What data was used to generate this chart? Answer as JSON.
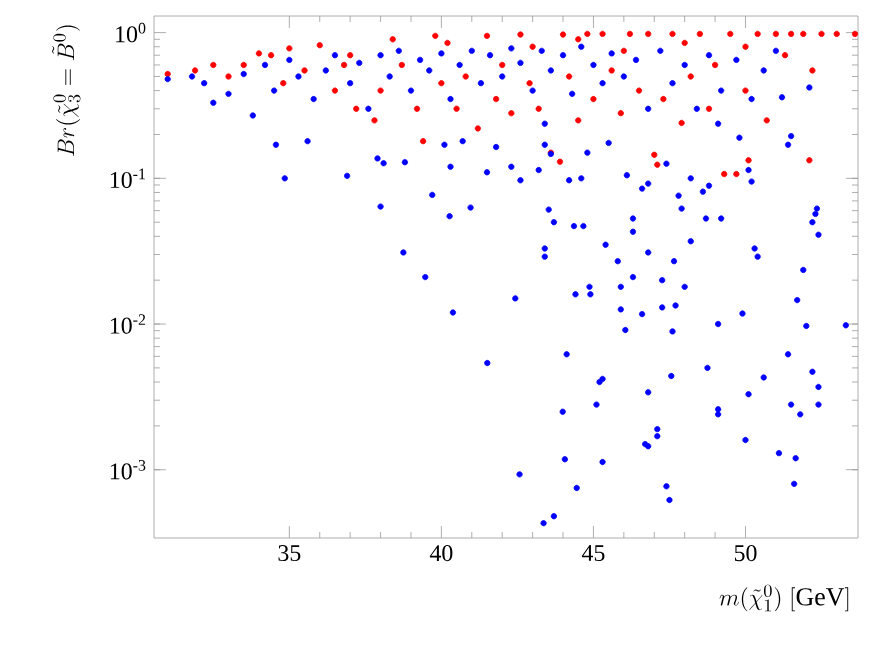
{
  "chart_data": {
    "type": "scatter",
    "xlabel": "m(\\tilde{\\chi}^0_1)\\ [\\mathrm{GeV}]",
    "ylabel": "Br(\\tilde{\\chi}^0_3=\\tilde{B}^0)",
    "xlim": [
      30.55,
      53.7
    ],
    "ylim": [
      0.00034,
      1.3
    ],
    "xticks": [
      35,
      40,
      45,
      50
    ],
    "yticks": [
      {
        "value": 0.001,
        "label": "10$^{-3}$"
      },
      {
        "value": 0.01,
        "label": "10$^{-2}$"
      },
      {
        "value": 0.1,
        "label": "10$^{-1}$"
      },
      {
        "value": 1,
        "label": "10$^{0}$"
      }
    ],
    "log": "y",
    "marker": "circle",
    "grid": false,
    "series": [
      {
        "color": "#ff0000",
        "x": [
          31.0,
          31.9,
          32.5,
          33.0,
          33.5,
          34.0,
          34.4,
          35.0,
          35.5,
          36.0,
          36.5,
          37.0,
          37.2,
          37.8,
          38.0,
          38.4,
          38.7,
          39.2,
          39.4,
          39.8,
          40.2,
          40.5,
          40.8,
          41.2,
          41.5,
          41.8,
          42.0,
          42.3,
          42.6,
          42.9,
          43.2,
          43.6,
          43.9,
          44.0,
          44.2,
          44.5,
          44.8,
          45.0,
          45.3,
          45.6,
          45.9,
          46.2,
          46.5,
          46.8,
          47.0,
          47.1,
          47.3,
          47.6,
          47.9,
          48.2,
          48.5,
          48.8,
          49.0,
          49.3,
          49.5,
          49.7,
          50.0,
          50.1,
          50.4,
          50.7,
          51.0,
          51.3,
          51.5,
          51.9,
          52.1,
          52.2,
          52.5,
          53.0,
          53.6,
          43.0,
          44.5,
          46.0,
          48.0,
          50.0,
          40.0,
          36.8,
          34.8
        ],
        "values": [
          0.52,
          0.55,
          0.6,
          0.5,
          0.6,
          0.72,
          0.7,
          0.78,
          0.55,
          0.82,
          0.4,
          0.7,
          0.3,
          0.25,
          0.4,
          0.9,
          0.6,
          0.3,
          0.18,
          0.95,
          0.85,
          0.3,
          0.5,
          0.22,
          0.95,
          0.35,
          0.6,
          0.28,
          0.97,
          0.45,
          0.3,
          0.15,
          0.13,
          0.97,
          0.5,
          0.25,
          0.98,
          0.35,
          0.98,
          0.55,
          0.28,
          0.98,
          0.4,
          0.98,
          0.145,
          0.124,
          0.35,
          0.98,
          0.24,
          0.5,
          0.98,
          0.3,
          0.6,
          0.107,
          0.98,
          0.107,
          0.4,
          0.133,
          0.98,
          0.25,
          0.98,
          0.7,
          0.98,
          0.98,
          0.133,
          0.55,
          0.98,
          0.98,
          0.98,
          0.8,
          0.9,
          0.75,
          0.85,
          0.8,
          0.45,
          0.6,
          0.45
        ]
      },
      {
        "color": "#0000ff",
        "x": [
          31.0,
          31.8,
          32.2,
          32.5,
          33.0,
          33.5,
          33.8,
          34.2,
          34.5,
          35.0,
          35.3,
          35.8,
          36.2,
          36.5,
          37.0,
          37.3,
          37.6,
          38.0,
          38.3,
          38.6,
          39.0,
          39.3,
          39.6,
          40.0,
          40.3,
          40.6,
          41.0,
          41.3,
          41.6,
          42.0,
          42.3,
          42.6,
          43.0,
          43.3,
          43.6,
          44.0,
          44.3,
          44.6,
          45.0,
          45.3,
          45.6,
          46.0,
          46.4,
          46.8,
          47.2,
          47.6,
          48.0,
          48.4,
          48.8,
          49.2,
          49.7,
          50.2,
          50.6,
          51.0,
          52.1,
          34.56,
          34.85,
          35.6,
          36.9,
          38.0,
          37.9,
          38.1,
          38.8,
          39.7,
          40.1,
          40.3,
          40.7,
          41.5,
          41.8,
          42.3,
          42.6,
          43.2,
          43.4,
          43.4,
          43.6,
          44.2,
          44.6,
          44.8,
          45.5,
          46.1,
          46.6,
          46.8,
          47.4,
          47.8,
          48.2,
          48.6,
          48.8,
          49.1,
          49.8,
          50.1,
          50.2,
          51.2,
          51.4,
          51.5,
          38.75,
          39.47,
          40.27,
          40.38,
          40.96,
          41.51,
          42.43,
          43.4,
          43.4,
          43.53,
          43.7,
          44.12,
          43.99,
          44.36,
          44.67,
          44.41,
          44.87,
          44.9,
          45.2,
          45.3,
          45.4,
          45.1,
          45.8,
          45.9,
          45.9,
          46.05,
          46.3,
          46.3,
          46.3,
          46.6,
          46.8,
          46.8,
          46.7,
          47.1,
          47.1,
          47.26,
          47.26,
          47.56,
          47.6,
          47.65,
          47.7,
          47.9,
          48.0,
          48.2,
          48.7,
          49.2,
          48.75,
          49.1,
          49.1,
          49.1,
          49.9,
          50.0,
          50.1,
          50.3,
          50.4,
          50.6,
          51.1,
          51.4,
          51.5,
          51.7,
          51.65,
          51.8,
          51.9,
          52.0,
          52.2,
          52.4,
          52.4,
          52.2,
          52.3,
          52.35,
          52.4,
          53.3,
          42.57,
          43.36,
          43.7,
          44.06,
          44.45,
          45.3,
          46.8,
          47.4,
          47.5,
          51.6
        ],
        "values": [
          0.48,
          0.5,
          0.45,
          0.33,
          0.38,
          0.52,
          0.27,
          0.6,
          0.4,
          0.65,
          0.5,
          0.35,
          0.55,
          0.7,
          0.45,
          0.62,
          0.3,
          0.7,
          0.5,
          0.75,
          0.4,
          0.65,
          0.55,
          0.72,
          0.35,
          0.6,
          0.75,
          0.45,
          0.7,
          0.5,
          0.78,
          0.62,
          0.4,
          0.75,
          0.55,
          0.7,
          0.38,
          0.8,
          0.6,
          0.45,
          0.72,
          0.5,
          0.65,
          0.3,
          0.75,
          0.45,
          0.6,
          0.3,
          0.7,
          0.4,
          0.65,
          0.35,
          0.55,
          0.75,
          0.42,
          0.17,
          0.1,
          0.18,
          0.104,
          0.064,
          0.137,
          0.127,
          0.129,
          0.077,
          0.17,
          0.12,
          0.18,
          0.11,
          0.164,
          0.12,
          0.097,
          0.114,
          0.237,
          0.17,
          0.147,
          0.097,
          0.1,
          0.15,
          0.175,
          0.105,
          0.085,
          0.092,
          0.126,
          0.076,
          0.1,
          0.081,
          0.089,
          0.237,
          0.19,
          0.114,
          0.095,
          0.36,
          0.17,
          0.195,
          0.031,
          0.021,
          0.055,
          0.012,
          0.063,
          0.0054,
          0.015,
          0.033,
          0.029,
          0.061,
          0.05,
          0.0062,
          0.0025,
          0.047,
          0.047,
          0.016,
          0.018,
          0.016,
          0.004,
          0.0042,
          0.035,
          0.0028,
          0.027,
          0.018,
          0.0126,
          0.0091,
          0.043,
          0.053,
          0.021,
          0.0117,
          0.031,
          0.0034,
          0.0015,
          0.0019,
          0.0017,
          0.02,
          0.013,
          0.0044,
          0.0089,
          0.027,
          0.0134,
          0.062,
          0.018,
          0.037,
          0.053,
          0.053,
          0.005,
          0.01,
          0.0026,
          0.0024,
          0.0118,
          0.0016,
          0.0033,
          0.033,
          0.029,
          0.0043,
          0.0013,
          0.0062,
          0.0028,
          0.0146,
          0.0012,
          0.0024,
          0.0235,
          0.0097,
          0.0047,
          0.0037,
          0.0028,
          0.05,
          0.057,
          0.062,
          0.041,
          0.0098,
          0.00093,
          0.00043,
          0.00048,
          0.00118,
          0.00075,
          0.00113,
          0.00145,
          0.00077,
          0.00062,
          0.0008
        ]
      }
    ]
  }
}
